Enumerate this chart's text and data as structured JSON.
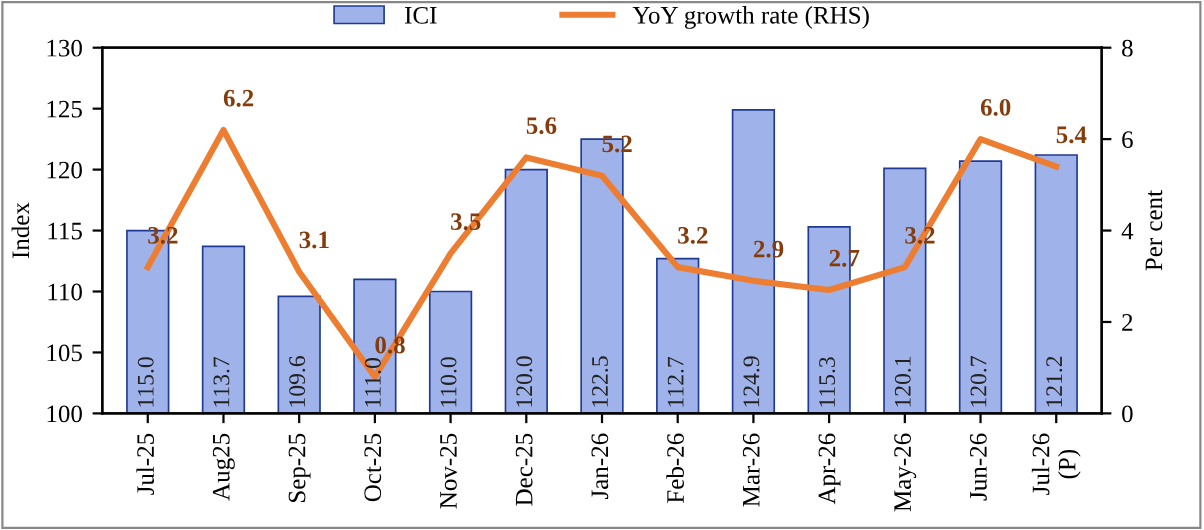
{
  "chart_data": {
    "type": "bar",
    "categories": [
      "Jul-25",
      "Aug25",
      "Sep-25",
      "Oct-25",
      "Nov-25",
      "Dec-25",
      "Jan-26",
      "Feb-26",
      "Mar-26",
      "Apr-26",
      "May-26",
      "Jun-26",
      "Jul-26\n(P)"
    ],
    "ylabel": "Index",
    "y2label": "Per cent",
    "ylim": [
      100,
      130
    ],
    "yticks": [
      100,
      105,
      110,
      115,
      120,
      125,
      130
    ],
    "y2lim": [
      0,
      8
    ],
    "y2ticks": [
      0,
      2,
      4,
      6,
      8
    ],
    "grid": false,
    "legend": "top",
    "marker": "none",
    "line_style": "solid",
    "series": [
      {
        "name": "ICI",
        "color": "#9fb3ea",
        "values": [
          115.0,
          113.7,
          109.6,
          111.0,
          110.0,
          120.0,
          122.5,
          112.7,
          124.9,
          115.3,
          120.1,
          120.7,
          121.2
        ],
        "value_labels": [
          "115.0",
          "113.7",
          "109.6",
          "111.0",
          "110.0",
          "120.0",
          "122.5",
          "112.7",
          "124.9",
          "115.3",
          "120.1",
          "120.7",
          "121.2"
        ]
      },
      {
        "name": "YoY growth rate (RHS)",
        "type": "line",
        "axis": "y2",
        "color": "#ed7d31",
        "values": [
          3.2,
          6.2,
          3.1,
          0.8,
          3.5,
          5.6,
          5.2,
          3.2,
          2.9,
          2.7,
          3.2,
          6.0,
          5.4
        ],
        "value_labels": [
          "3.2",
          "6.2",
          "3.1",
          "0.8",
          "3.5",
          "5.6",
          "5.2",
          "3.2",
          "2.9",
          "2.7",
          "3.2",
          "6.0",
          "5.4"
        ]
      }
    ]
  }
}
